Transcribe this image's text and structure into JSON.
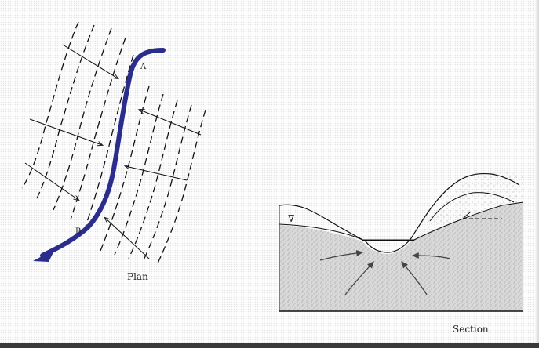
{
  "plan": {
    "label": "Plan",
    "point_a": "A",
    "point_b": "B",
    "stream_color": "#2b2d8c"
  },
  "section": {
    "label": "Section",
    "water_table_symbol": "∇",
    "fill_color": "#d6d6d6"
  }
}
